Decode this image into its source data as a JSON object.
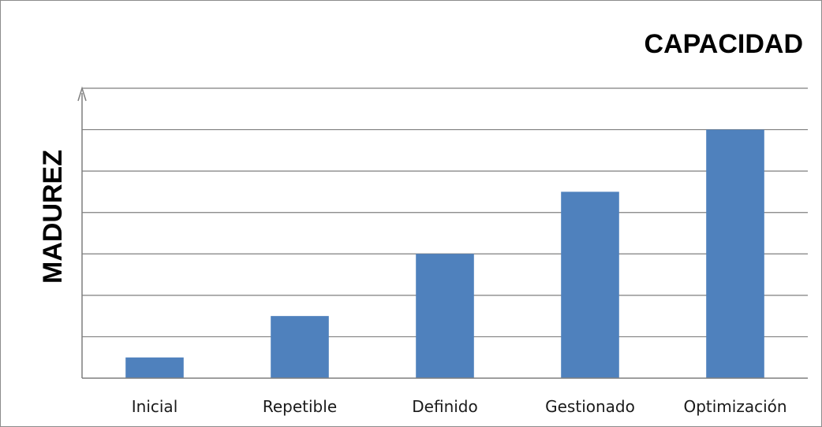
{
  "chart_data": {
    "type": "bar",
    "title": "CAPACIDAD",
    "xlabel": "",
    "ylabel": "MADUREZ",
    "categories": [
      "Inicial",
      "Repetible",
      "Definido",
      "Gestionado",
      "Optimización"
    ],
    "values": [
      0.5,
      1.5,
      3.0,
      4.5,
      6.0
    ],
    "ylim": [
      0,
      7
    ],
    "grid": true,
    "show_y_tick_labels": false,
    "legend": "none",
    "colors": {
      "bar": "#4f81bd",
      "grid": "#7f7f7f",
      "axis": "#7f7f7f",
      "border": "#8c8c8c"
    }
  }
}
